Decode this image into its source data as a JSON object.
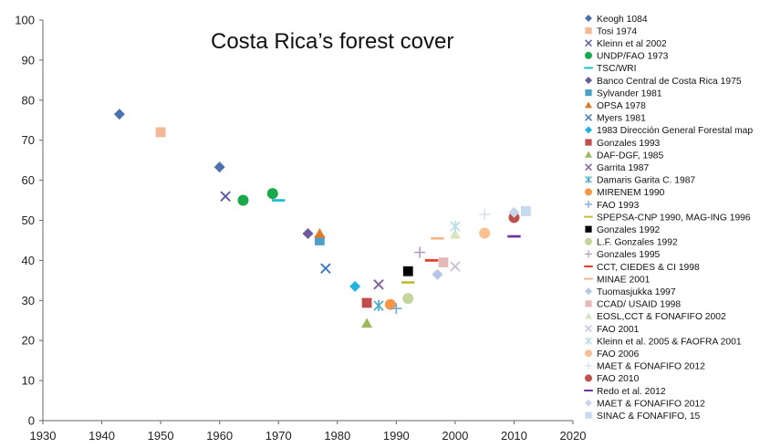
{
  "chart_data": {
    "type": "scatter",
    "title": "Costa Rica’s forest cover",
    "xlabel": "",
    "ylabel": "",
    "xlim": [
      1930,
      2020
    ],
    "ylim": [
      0,
      100
    ],
    "xticks": [
      1930,
      1940,
      1950,
      1960,
      1970,
      1980,
      1990,
      2000,
      2010,
      2020
    ],
    "yticks": [
      0,
      10,
      20,
      30,
      40,
      50,
      60,
      70,
      80,
      90,
      100
    ],
    "grid": false,
    "legend_position": "right",
    "series": [
      {
        "name": "Keogh 1084",
        "color": "#4a72b0",
        "marker": "diamond",
        "points": [
          [
            1943,
            76.5
          ],
          [
            1960,
            63.3
          ]
        ]
      },
      {
        "name": "Tosi 1974",
        "color": "#f5b896",
        "marker": "square",
        "points": [
          [
            1950,
            72
          ]
        ]
      },
      {
        "name": "Kleinn et al 2002",
        "color": "#5b5aa8",
        "marker": "x",
        "points": [
          [
            1961,
            56
          ]
        ]
      },
      {
        "name": "UNDP/FAO 1973",
        "color": "#1ba84b",
        "marker": "circle",
        "points": [
          [
            1964,
            55
          ],
          [
            1969,
            56.7
          ]
        ]
      },
      {
        "name": "TSC/WRI",
        "color": "#19bcd0",
        "marker": "dash",
        "points": [
          [
            1970,
            55
          ]
        ]
      },
      {
        "name": "Banco Central de Costa Rica 1975",
        "color": "#6b5b9a",
        "marker": "diamond",
        "points": [
          [
            1975,
            46.7
          ]
        ]
      },
      {
        "name": "Sylvander 1981",
        "color": "#4aa0c8",
        "marker": "square",
        "points": [
          [
            1977,
            45
          ]
        ]
      },
      {
        "name": "OPSA 1978",
        "color": "#e07b2a",
        "marker": "triangle",
        "points": [
          [
            1977,
            46.7
          ]
        ]
      },
      {
        "name": "Myers 1981",
        "color": "#3d7bbf",
        "marker": "x",
        "points": [
          [
            1978,
            38
          ]
        ]
      },
      {
        "name": "1983 Dirección General Forestal map",
        "color": "#22b3e3",
        "marker": "diamond",
        "points": [
          [
            1983,
            33.5
          ]
        ]
      },
      {
        "name": "Gonzales 1993",
        "color": "#c14d4d",
        "marker": "square",
        "points": [
          [
            1985,
            29.4
          ]
        ]
      },
      {
        "name": "DAF-DGF, 1985",
        "color": "#9bbb59",
        "marker": "triangle",
        "points": [
          [
            1985,
            24.3
          ]
        ]
      },
      {
        "name": "Garrita 1987",
        "color": "#8064a2",
        "marker": "x",
        "points": [
          [
            1987,
            34
          ]
        ]
      },
      {
        "name": "Damaris Garita C. 1987",
        "color": "#4bacc6",
        "marker": "asterisk",
        "points": [
          [
            1987,
            28.7
          ]
        ]
      },
      {
        "name": "MIRENEM 1990",
        "color": "#f79646",
        "marker": "circle",
        "points": [
          [
            1989,
            29
          ]
        ]
      },
      {
        "name": "FAO 1993",
        "color": "#7ba7d6",
        "marker": "plus",
        "points": [
          [
            1990,
            28
          ]
        ]
      },
      {
        "name": "SPEPSA-CNP 1990, MAG-ING 1996",
        "color": "#c4bd3c",
        "marker": "dash",
        "points": [
          [
            1992,
            34.5
          ]
        ]
      },
      {
        "name": "Gonzales 1992",
        "color": "#000000",
        "marker": "square",
        "points": [
          [
            1992,
            37.3
          ]
        ]
      },
      {
        "name": "L.F. Gonzales 1992",
        "color": "#c3d69b",
        "marker": "circle",
        "points": [
          [
            1992,
            30.5
          ]
        ]
      },
      {
        "name": "Gonzales 1995",
        "color": "#b3a2c7",
        "marker": "plus",
        "points": [
          [
            1994,
            42
          ]
        ]
      },
      {
        "name": "CCT, CIEDES & CI 1998",
        "color": "#e8382e",
        "marker": "dash",
        "points": [
          [
            1996,
            40
          ]
        ]
      },
      {
        "name": "MINAE 2001",
        "color": "#f5b58a",
        "marker": "dash",
        "points": [
          [
            1997,
            45.5
          ]
        ]
      },
      {
        "name": "Tuomasjukka 1997",
        "color": "#b4c7e7",
        "marker": "diamond",
        "points": [
          [
            1997,
            36.5
          ]
        ]
      },
      {
        "name": "CCAD/ USAID 1998",
        "color": "#e6b9b8",
        "marker": "square",
        "points": [
          [
            1998,
            39.5
          ]
        ]
      },
      {
        "name": "EOSL,CCT & FONAFIFO 2002",
        "color": "#d7e4bd",
        "marker": "triangle",
        "points": [
          [
            2000,
            46.5
          ]
        ]
      },
      {
        "name": "FAO 2001",
        "color": "#ccc1da",
        "marker": "x",
        "points": [
          [
            2000,
            38.5
          ]
        ]
      },
      {
        "name": "Kleinn et al. 2005 & FAOFRA 2001",
        "color": "#b7dee8",
        "marker": "asterisk",
        "points": [
          [
            2000,
            48.5
          ]
        ]
      },
      {
        "name": "FAO 2006",
        "color": "#fac090",
        "marker": "circle",
        "points": [
          [
            2005,
            46.8
          ]
        ]
      },
      {
        "name": "MAET & FONAFIFO 2012",
        "color": "#d9e1f2",
        "marker": "plus",
        "points": [
          [
            2005,
            51.5
          ]
        ]
      },
      {
        "name": "FAO 2010",
        "color": "#c0504d",
        "marker": "circle",
        "points": [
          [
            2010,
            50.7
          ]
        ]
      },
      {
        "name": "Redo et al. 2012",
        "color": "#7030a0",
        "marker": "dash",
        "points": [
          [
            2010,
            46
          ]
        ]
      },
      {
        "name": "MAET & FONAFIFO 2012",
        "color": "#c9d3e9",
        "marker": "diamond",
        "points": [
          [
            2010,
            52
          ]
        ]
      },
      {
        "name": "SINAC & FONAFIFO, 15",
        "color": "#c6d9f1",
        "marker": "square",
        "points": [
          [
            2012,
            52.3
          ]
        ]
      }
    ]
  }
}
